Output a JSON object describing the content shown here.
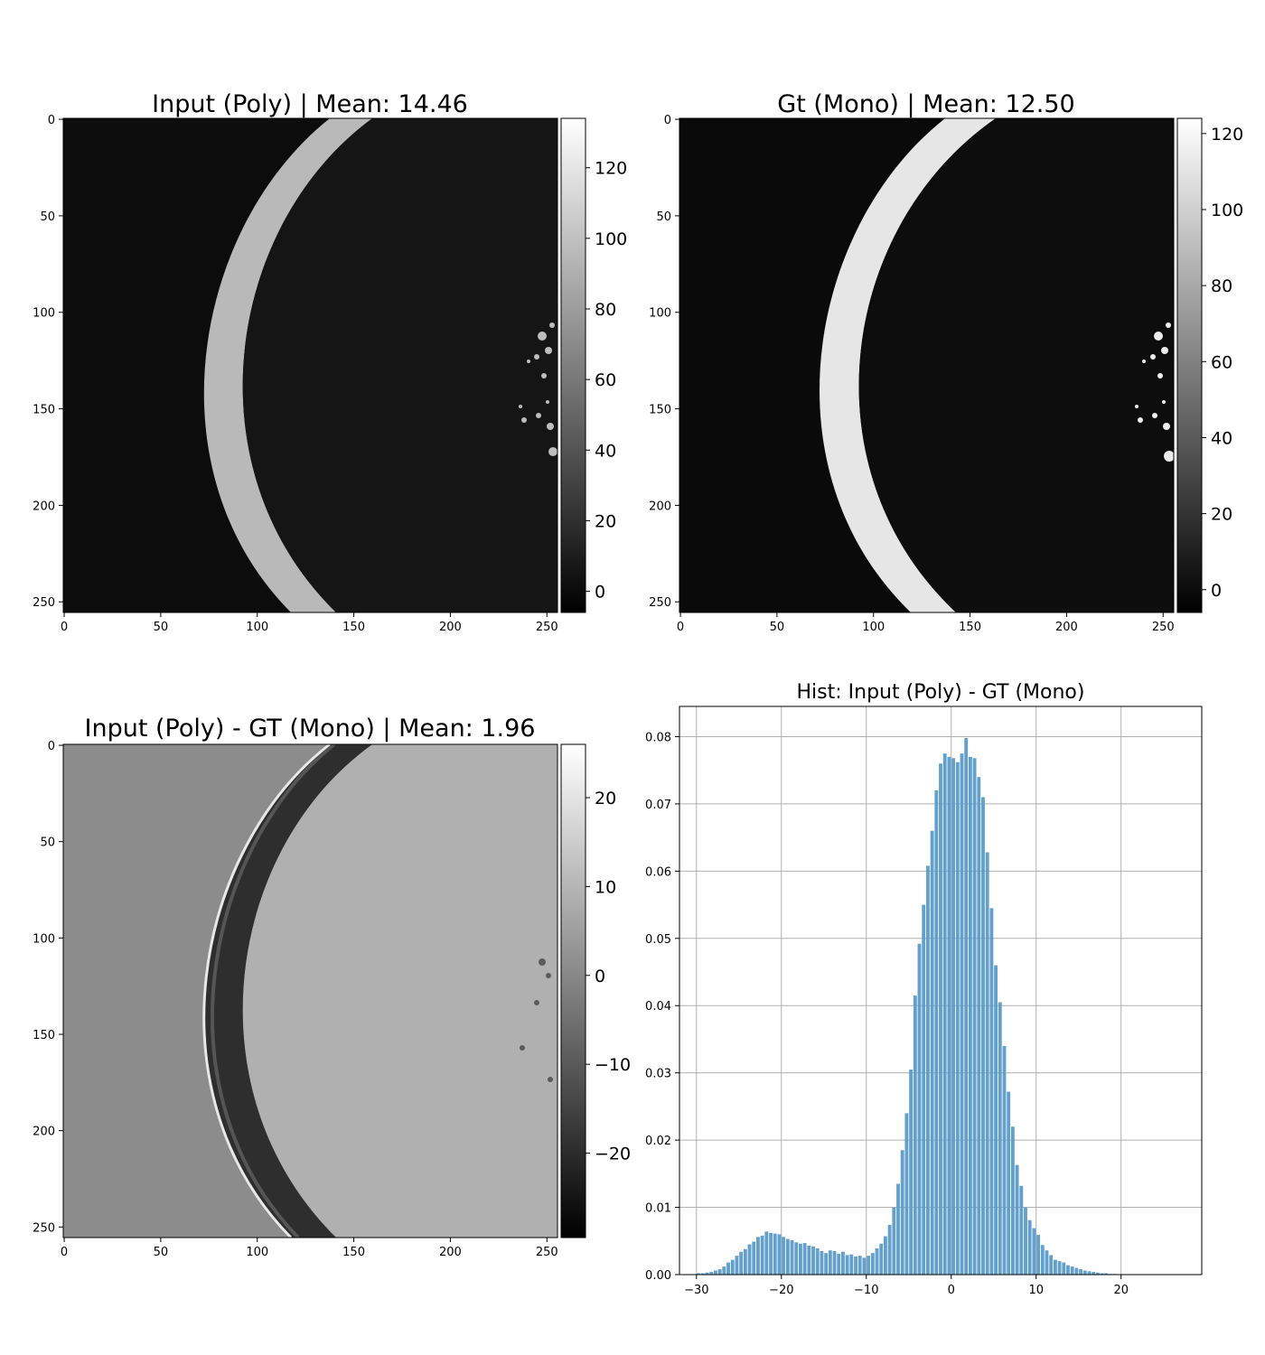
{
  "panels": {
    "input": {
      "title": "Input (Poly) | Mean: 14.46",
      "xticks": [
        0,
        50,
        100,
        150,
        200,
        250
      ],
      "yticks": [
        0,
        50,
        100,
        150,
        200,
        250
      ],
      "colorbar": {
        "min": -6,
        "max": 134,
        "ticks": [
          0,
          20,
          40,
          60,
          80,
          100,
          120
        ]
      }
    },
    "gt": {
      "title": "Gt (Mono) | Mean: 12.50",
      "xticks": [
        0,
        50,
        100,
        150,
        200,
        250
      ],
      "yticks": [
        0,
        50,
        100,
        150,
        200,
        250
      ],
      "colorbar": {
        "min": -6,
        "max": 124,
        "ticks": [
          0,
          20,
          40,
          60,
          80,
          100,
          120
        ]
      }
    },
    "diff": {
      "title": "Input (Poly) - GT (Mono) | Mean: 1.96",
      "xticks": [
        0,
        50,
        100,
        150,
        200,
        250
      ],
      "yticks": [
        0,
        50,
        100,
        150,
        200,
        250
      ],
      "colorbar": {
        "min": -29.5,
        "max": 26,
        "ticks": [
          20,
          10,
          0,
          -10,
          -20
        ],
        "tick_labels": [
          "20",
          "10",
          "0",
          "−10",
          "−20"
        ]
      }
    }
  },
  "chart_data": {
    "type": "bar",
    "title": "Hist: Input (Poly) - GT (Mono)",
    "xlabel": "",
    "ylabel": "",
    "xlim": [
      -32,
      29.5
    ],
    "ylim": [
      0,
      0.0845
    ],
    "xticks": [
      -30,
      -20,
      -10,
      0,
      10,
      20
    ],
    "xtick_labels": [
      "−30",
      "−20",
      "−10",
      "0",
      "10",
      "20"
    ],
    "yticks": [
      0.0,
      0.01,
      0.02,
      0.03,
      0.04,
      0.05,
      0.06,
      0.07,
      0.08
    ],
    "ytick_labels": [
      "0.00",
      "0.01",
      "0.02",
      "0.03",
      "0.04",
      "0.05",
      "0.06",
      "0.07",
      "0.08"
    ],
    "grid": true,
    "bar_color": "#5b9bc9",
    "bin_start": -30.0,
    "bin_width": 0.5,
    "values": [
      0.0002,
      0.0002,
      0.0003,
      0.0004,
      0.0006,
      0.0008,
      0.0012,
      0.0018,
      0.0022,
      0.0028,
      0.0034,
      0.0038,
      0.0045,
      0.0049,
      0.0056,
      0.0058,
      0.0064,
      0.0062,
      0.0061,
      0.006,
      0.0056,
      0.0053,
      0.0051,
      0.0048,
      0.0046,
      0.0047,
      0.0043,
      0.0042,
      0.0039,
      0.0035,
      0.0032,
      0.0036,
      0.0035,
      0.0031,
      0.0034,
      0.0029,
      0.003,
      0.0027,
      0.0028,
      0.0025,
      0.0028,
      0.0032,
      0.0039,
      0.0046,
      0.0057,
      0.0074,
      0.01,
      0.0135,
      0.0185,
      0.024,
      0.0305,
      0.0415,
      0.0492,
      0.055,
      0.0608,
      0.066,
      0.072,
      0.076,
      0.0775,
      0.077,
      0.0768,
      0.0762,
      0.0775,
      0.0798,
      0.077,
      0.0768,
      0.074,
      0.071,
      0.0628,
      0.0545,
      0.046,
      0.0405,
      0.034,
      0.0272,
      0.022,
      0.0163,
      0.0132,
      0.01,
      0.0081,
      0.0069,
      0.0059,
      0.0044,
      0.0036,
      0.0029,
      0.0022,
      0.002,
      0.0018,
      0.0014,
      0.0012,
      0.001,
      0.0008,
      0.0006,
      0.0005,
      0.0004,
      0.0003,
      0.0002,
      0.0002,
      0.0001,
      0.0001
    ]
  }
}
